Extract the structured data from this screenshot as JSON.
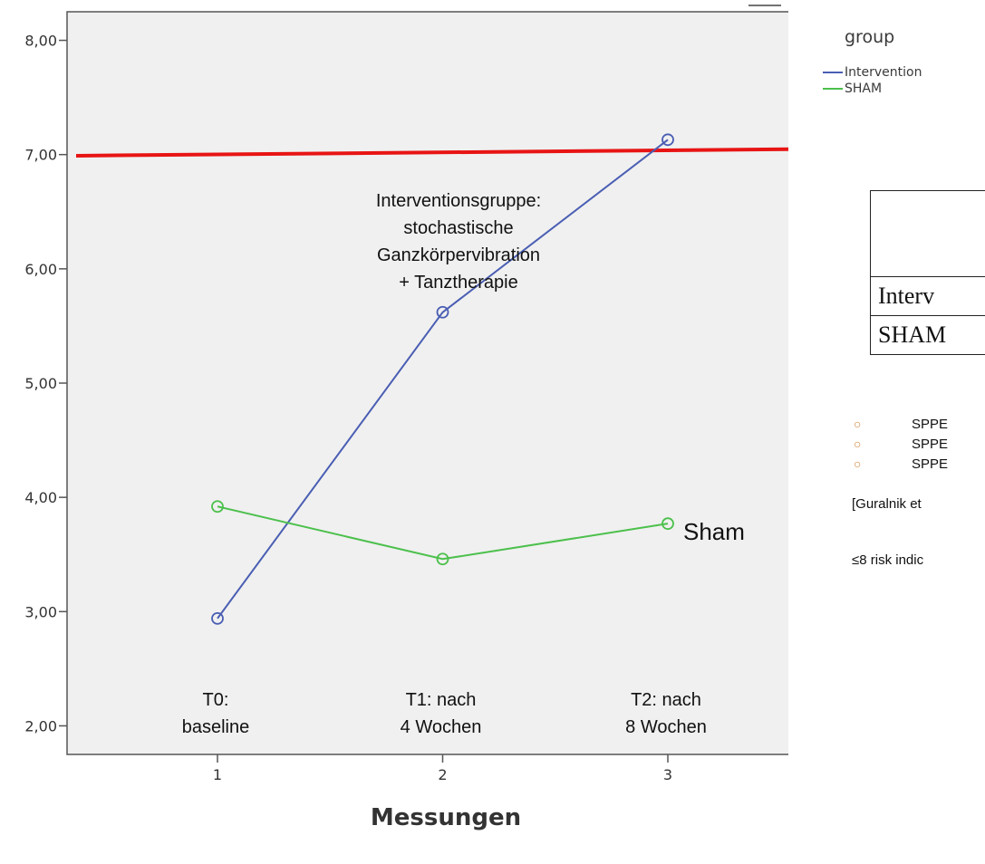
{
  "chart_data": {
    "type": "line",
    "xlabel": "Messungen",
    "ylabel": "",
    "x": [
      1,
      2,
      3
    ],
    "x_ticks": [
      "1",
      "2",
      "3"
    ],
    "ylim": [
      1.75,
      8.25
    ],
    "y_ticks": [
      "2,00",
      "3,00",
      "4,00",
      "5,00",
      "6,00",
      "7,00",
      "8,00"
    ],
    "grid": false,
    "legend": {
      "title": "group",
      "placement": "right",
      "entries": [
        "Intervention",
        "SHAM"
      ]
    },
    "series": [
      {
        "name": "Intervention",
        "values": [
          2.94,
          5.62,
          7.13
        ],
        "color": "#4a5eb3"
      },
      {
        "name": "SHAM",
        "values": [
          3.92,
          3.46,
          3.77
        ],
        "color": "#4cc04c"
      }
    ],
    "reference_line": {
      "y_start": 6.99,
      "y_end": 7.05,
      "color": "#e81414"
    },
    "annotations": {
      "intervention_lines": [
        "Interventionsgruppe:",
        "stochastische",
        "Ganzkörpervibration",
        "+ Tanztherapie"
      ],
      "sham_label": "Sham",
      "timepoints": [
        {
          "x": 1,
          "lines": [
            "T0:",
            "baseline"
          ]
        },
        {
          "x": 2,
          "lines": [
            "T1: nach",
            "4 Wochen"
          ]
        },
        {
          "x": 3,
          "lines": [
            "T2: nach",
            "8 Wochen"
          ]
        }
      ]
    }
  },
  "side_table": {
    "rows": [
      "Interv",
      "SHAM"
    ]
  },
  "notes": {
    "bullet_glyph": "○",
    "items": [
      "SPPE",
      "SPPE",
      "SPPE"
    ],
    "citation": "[Guralnik et",
    "risk": "≤8 risk indic"
  },
  "colors": {
    "plot_background": "#f0f0f0",
    "reference_line": "#e81414"
  }
}
